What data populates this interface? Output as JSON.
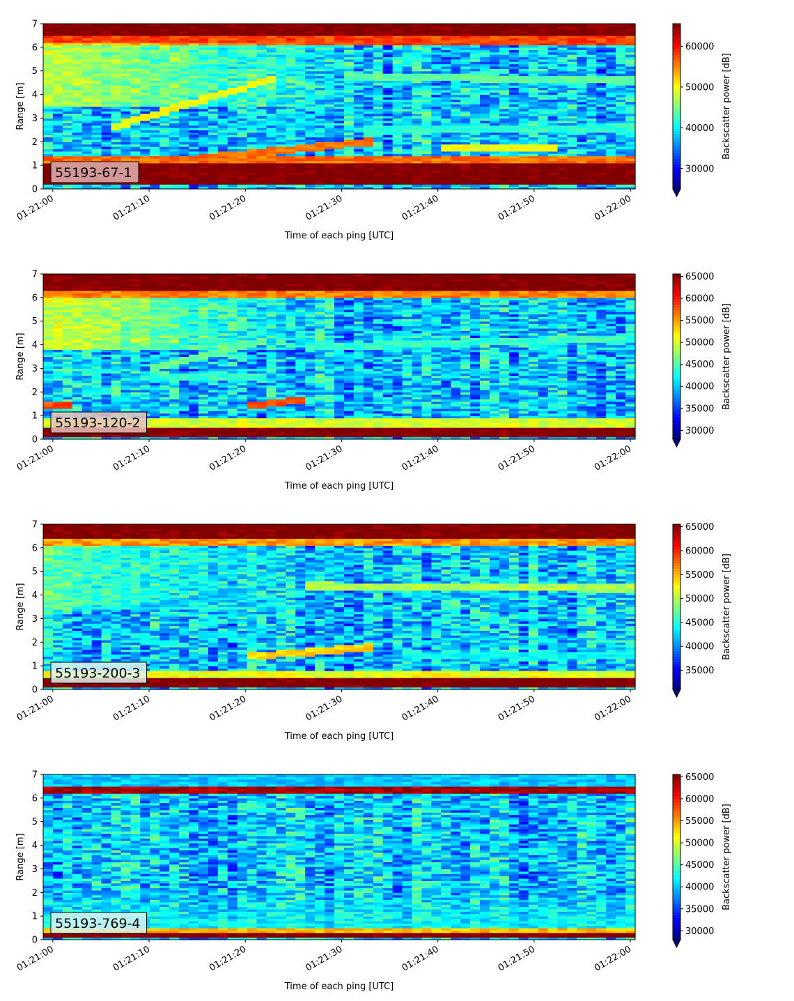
{
  "chart_data": [
    {
      "type": "heatmap",
      "panel_label": "55193-67-1",
      "xlabel": "Time of each ping [UTC]",
      "ylabel": "Range [m]",
      "colorbar_label": "Backscatter power [dB]",
      "colormap": "jet",
      "x_ticks": [
        "01:21:00",
        "01:21:10",
        "01:21:20",
        "01:21:30",
        "01:21:40",
        "01:21:50",
        "01:22:00"
      ],
      "x_range_seconds": [
        -1,
        60.5
      ],
      "ylim": [
        0,
        7
      ],
      "y_ticks": [
        0,
        1,
        2,
        3,
        4,
        5,
        6,
        7
      ],
      "clim": [
        25000,
        65535
      ],
      "colorbar_ticks": [
        30000,
        40000,
        50000,
        60000
      ],
      "label_box_color": "#e3b1b1",
      "features": [
        {
          "kind": "band",
          "y0": 0.2,
          "y1": 1.15,
          "value": 66000
        },
        {
          "kind": "band",
          "y0": 1.15,
          "y1": 1.4,
          "value": 56000
        },
        {
          "kind": "band",
          "y0": 6.5,
          "y1": 7.0,
          "value": 66000
        },
        {
          "kind": "band",
          "y0": 6.15,
          "y1": 6.5,
          "value": 58000
        },
        {
          "kind": "upper_fade",
          "y0": 3.5,
          "y1": 6.15,
          "t_start": 0,
          "t_end": 34,
          "value": 50000
        },
        {
          "kind": "line",
          "t0": 6,
          "y0": 2.6,
          "t1": 23,
          "y1": 4.7,
          "value": 50000
        },
        {
          "kind": "line",
          "t0": 15,
          "y0": 1.3,
          "t1": 33,
          "y1": 2.0,
          "value": 56000
        },
        {
          "kind": "line",
          "t0": 30,
          "y0": 4.8,
          "t1": 60,
          "y1": 4.6,
          "value": 44000
        },
        {
          "kind": "line",
          "t0": 32,
          "y0": 2.5,
          "t1": 60,
          "y1": 2.6,
          "value": 42000
        },
        {
          "kind": "line",
          "t0": 40,
          "y0": 1.75,
          "t1": 52,
          "y1": 1.75,
          "value": 50000
        }
      ]
    },
    {
      "type": "heatmap",
      "panel_label": "55193-120-2",
      "xlabel": "Time of each ping [UTC]",
      "ylabel": "Range [m]",
      "colorbar_label": "Backscatter power [dB]",
      "colormap": "jet",
      "x_ticks": [
        "01:21:00",
        "01:21:10",
        "01:21:20",
        "01:21:30",
        "01:21:40",
        "01:21:50",
        "01:22:00"
      ],
      "x_range_seconds": [
        -1,
        60.5
      ],
      "ylim": [
        0,
        7
      ],
      "y_ticks": [
        0,
        1,
        2,
        3,
        4,
        5,
        6,
        7
      ],
      "clim": [
        28000,
        65535
      ],
      "colorbar_ticks": [
        30000,
        35000,
        40000,
        45000,
        50000,
        55000,
        60000,
        65000
      ],
      "label_box_color": "#e8c0c0",
      "features": [
        {
          "kind": "band",
          "y0": 0.1,
          "y1": 0.55,
          "value": 66000
        },
        {
          "kind": "band",
          "y0": 0.55,
          "y1": 0.85,
          "value": 50000
        },
        {
          "kind": "band",
          "y0": 6.3,
          "y1": 7.0,
          "value": 66000
        },
        {
          "kind": "band",
          "y0": 6.0,
          "y1": 6.3,
          "value": 56000
        },
        {
          "kind": "upper_fade",
          "y0": 3.8,
          "y1": 6.0,
          "t_start": 0,
          "t_end": 30,
          "value": 52000
        },
        {
          "kind": "line",
          "t0": 10,
          "y0": 3.0,
          "t1": 22,
          "y1": 4.2,
          "value": 46000
        },
        {
          "kind": "line",
          "t0": 20,
          "y0": 1.4,
          "t1": 26,
          "y1": 1.7,
          "value": 58000
        },
        {
          "kind": "line",
          "t0": 10,
          "y0": 2.7,
          "t1": 22,
          "y1": 2.6,
          "value": 44000
        },
        {
          "kind": "line",
          "t0": 26,
          "y0": 3.9,
          "t1": 60,
          "y1": 4.3,
          "value": 44000
        },
        {
          "kind": "line",
          "t0": -1,
          "y0": 1.45,
          "t1": 2,
          "y1": 1.45,
          "value": 58000
        }
      ]
    },
    {
      "type": "heatmap",
      "panel_label": "55193-200-3",
      "xlabel": "Time of each ping [UTC]",
      "ylabel": "Range [m]",
      "colorbar_label": "Backscatter power [dB]",
      "colormap": "jet",
      "x_ticks": [
        "01:21:00",
        "01:21:10",
        "01:21:20",
        "01:21:30",
        "01:21:40",
        "01:21:50",
        "01:22:00"
      ],
      "x_range_seconds": [
        -1,
        60.5
      ],
      "ylim": [
        0,
        7
      ],
      "y_ticks": [
        0,
        1,
        2,
        3,
        4,
        5,
        6,
        7
      ],
      "clim": [
        31000,
        65535
      ],
      "colorbar_ticks": [
        35000,
        40000,
        45000,
        50000,
        55000,
        60000,
        65000
      ],
      "label_box_color": "#dff2ee",
      "features": [
        {
          "kind": "band",
          "y0": 0.15,
          "y1": 0.5,
          "value": 66000
        },
        {
          "kind": "band",
          "y0": 0.5,
          "y1": 0.8,
          "value": 52000
        },
        {
          "kind": "band",
          "y0": 6.4,
          "y1": 7.0,
          "value": 66000
        },
        {
          "kind": "band",
          "y0": 6.1,
          "y1": 6.4,
          "value": 56000
        },
        {
          "kind": "upper_fade",
          "y0": 3.4,
          "y1": 6.1,
          "t_start": 0,
          "t_end": 25,
          "value": 48000
        },
        {
          "kind": "line",
          "t0": 20,
          "y0": 1.4,
          "t1": 33,
          "y1": 1.8,
          "value": 54000
        },
        {
          "kind": "line",
          "t0": 8,
          "y0": 3.4,
          "t1": 20,
          "y1": 4.2,
          "value": 42000
        },
        {
          "kind": "line",
          "t0": 26,
          "y0": 4.4,
          "t1": 60,
          "y1": 4.3,
          "value": 50000
        },
        {
          "kind": "line",
          "t0": 36,
          "y0": 1.4,
          "t1": 60,
          "y1": 1.5,
          "value": 44000
        }
      ]
    },
    {
      "type": "heatmap",
      "panel_label": "55193-769-4",
      "xlabel": "Time of each ping [UTC]",
      "ylabel": "Range [m]",
      "colorbar_label": "Backscatter power [dB]",
      "colormap": "jet",
      "x_ticks": [
        "01:21:00",
        "01:21:10",
        "01:21:20",
        "01:21:30",
        "01:21:40",
        "01:21:50",
        "01:22:00"
      ],
      "x_range_seconds": [
        -1,
        60.5
      ],
      "ylim": [
        0,
        7
      ],
      "y_ticks": [
        0,
        1,
        2,
        3,
        4,
        5,
        6,
        7
      ],
      "clim": [
        28000,
        65535
      ],
      "colorbar_ticks": [
        30000,
        35000,
        40000,
        45000,
        50000,
        55000,
        60000,
        65000
      ],
      "label_box_color": "#d7f3f3",
      "features": [
        {
          "kind": "band",
          "y0": 0.1,
          "y1": 0.3,
          "value": 66000
        },
        {
          "kind": "band",
          "y0": 0.3,
          "y1": 0.45,
          "value": 54000
        },
        {
          "kind": "band",
          "y0": 6.2,
          "y1": 6.5,
          "value": 64000
        },
        {
          "kind": "band",
          "y0": 6.5,
          "y1": 7.0,
          "value": 40000
        },
        {
          "kind": "lower_glow",
          "y0": 0.45,
          "y1": 2.2,
          "value": 44000
        }
      ]
    }
  ]
}
